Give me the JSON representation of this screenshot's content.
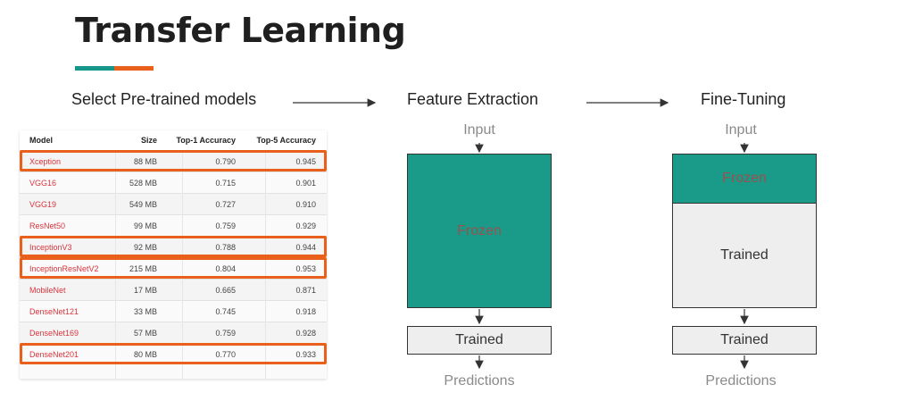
{
  "title": "Transfer Learning",
  "colors": {
    "teal": "#1a9a88",
    "orange": "#e8601c",
    "model_name": "#d9363e"
  },
  "steps": {
    "select": "Select Pre-trained models",
    "feature_extraction": "Feature Extraction",
    "fine_tuning": "Fine-Tuning"
  },
  "table": {
    "headers": {
      "model": "Model",
      "size": "Size",
      "top1": "Top-1 Accuracy",
      "top5": "Top-5 Accuracy"
    },
    "rows": [
      {
        "model": "Xception",
        "size": "88 MB",
        "top1": "0.790",
        "top5": "0.945",
        "highlighted": true
      },
      {
        "model": "VGG16",
        "size": "528 MB",
        "top1": "0.715",
        "top5": "0.901",
        "highlighted": false
      },
      {
        "model": "VGG19",
        "size": "549 MB",
        "top1": "0.727",
        "top5": "0.910",
        "highlighted": false
      },
      {
        "model": "ResNet50",
        "size": "99 MB",
        "top1": "0.759",
        "top5": "0.929",
        "highlighted": false
      },
      {
        "model": "InceptionV3",
        "size": "92 MB",
        "top1": "0.788",
        "top5": "0.944",
        "highlighted": true
      },
      {
        "model": "InceptionResNetV2",
        "size": "215 MB",
        "top1": "0.804",
        "top5": "0.953",
        "highlighted": true
      },
      {
        "model": "MobileNet",
        "size": "17 MB",
        "top1": "0.665",
        "top5": "0.871",
        "highlighted": false
      },
      {
        "model": "DenseNet121",
        "size": "33 MB",
        "top1": "0.745",
        "top5": "0.918",
        "highlighted": false
      },
      {
        "model": "DenseNet169",
        "size": "57 MB",
        "top1": "0.759",
        "top5": "0.928",
        "highlighted": false
      },
      {
        "model": "DenseNet201",
        "size": "80 MB",
        "top1": "0.770",
        "top5": "0.933",
        "highlighted": true
      }
    ]
  },
  "feature_extraction": {
    "input": "Input",
    "frozen": "Frozen",
    "trained": "Trained",
    "predictions": "Predictions"
  },
  "fine_tuning": {
    "input": "Input",
    "frozen": "Frozen",
    "trained_base": "Trained",
    "trained_head": "Trained",
    "predictions": "Predictions"
  }
}
